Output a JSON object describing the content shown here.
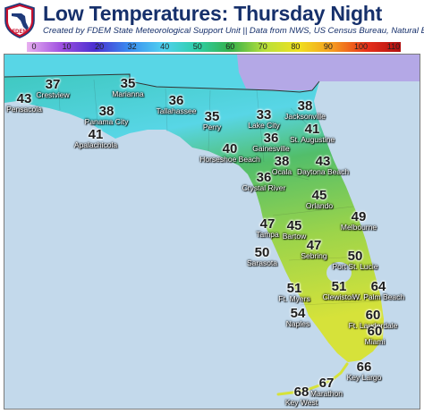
{
  "header": {
    "title": "Low Temperatures: Thursday Night",
    "subtitle": "Created by FDEM State Meteorological Support Unit || Data from NWS, US Census Bureau, Natural Earth",
    "logo_text": "FDEM"
  },
  "legend": {
    "ticks": [
      "0",
      "10",
      "20",
      "32",
      "40",
      "50",
      "60",
      "70",
      "80",
      "90",
      "100",
      "110"
    ],
    "colors": [
      "#e8b0f0",
      "#a050e0",
      "#4a2fd0",
      "#3a8cf0",
      "#4fd0f0",
      "#2ecfa8",
      "#36b04a",
      "#b8e03a",
      "#f0e020",
      "#f59a20",
      "#e8301a",
      "#b01010"
    ]
  },
  "map": {
    "water_color": "#c3d9eb",
    "land_colors": {
      "panhandle": "#3fc8c0",
      "north": "#58d6e6",
      "nw_corner": "#b4a8e6",
      "central": "#52be6a",
      "south": "#9cd44a",
      "keys": "#d6e23a"
    },
    "cities": [
      {
        "temp": "37",
        "name": "Crestview"
      },
      {
        "temp": "43",
        "name": "Pensacola"
      },
      {
        "temp": "35",
        "name": "Marianna"
      },
      {
        "temp": "38",
        "name": "Panama City"
      },
      {
        "temp": "36",
        "name": "Tallahassee"
      },
      {
        "temp": "41",
        "name": "Apalachicola"
      },
      {
        "temp": "35",
        "name": "Perry"
      },
      {
        "temp": "33",
        "name": "Lake City"
      },
      {
        "temp": "38",
        "name": "Jacksonville"
      },
      {
        "temp": "41",
        "name": "St. Augustine"
      },
      {
        "temp": "36",
        "name": "Gainesville"
      },
      {
        "temp": "40",
        "name": "Horseshoe Beach"
      },
      {
        "temp": "38",
        "name": "Ocala"
      },
      {
        "temp": "43",
        "name": "Daytona Beach"
      },
      {
        "temp": "36",
        "name": "Crystal River"
      },
      {
        "temp": "45",
        "name": "Orlando"
      },
      {
        "temp": "49",
        "name": "Melbourne"
      },
      {
        "temp": "47",
        "name": "Tampa"
      },
      {
        "temp": "45",
        "name": "Bartow"
      },
      {
        "temp": "47",
        "name": "Sebring"
      },
      {
        "temp": "50",
        "name": "Sarasota"
      },
      {
        "temp": "50",
        "name": "Port St. Lucie"
      },
      {
        "temp": "51",
        "name": "Ft. Myers"
      },
      {
        "temp": "51",
        "name": "Clewiston"
      },
      {
        "temp": "64",
        "name": "W. Palm Beach"
      },
      {
        "temp": "54",
        "name": "Naples"
      },
      {
        "temp": "60",
        "name": "Ft. Lauderdale"
      },
      {
        "temp": "60",
        "name": "Miami"
      },
      {
        "temp": "66",
        "name": "Key Largo"
      },
      {
        "temp": "67",
        "name": "Marathon"
      },
      {
        "temp": "68",
        "name": "Key West"
      }
    ]
  }
}
